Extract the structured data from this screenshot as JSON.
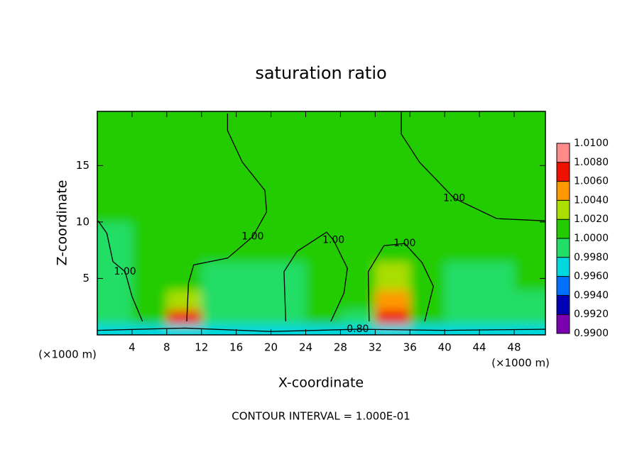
{
  "chart_data": {
    "type": "contour",
    "title": "saturation ratio",
    "x_label": "X-coordinate",
    "y_label": "Z-coordinate",
    "x_unit_left": "(×1000 m)",
    "x_unit_right": "(×1000 m)",
    "footnote": "CONTOUR INTERVAL = 1.000E-01",
    "xlim": [
      0,
      51.6
    ],
    "ylim": [
      0,
      19.8
    ],
    "xticks": [
      4,
      8,
      12,
      16,
      20,
      24,
      28,
      32,
      36,
      40,
      44,
      48
    ],
    "yticks": [
      5,
      10,
      15
    ],
    "field": {
      "x": [
        2,
        6,
        10,
        14,
        18,
        22,
        26,
        30,
        34,
        38,
        42,
        46,
        50
      ],
      "z": [
        0.5,
        1.5,
        3,
        5,
        8,
        12,
        17
      ],
      "values": [
        [
          0.997,
          0.997,
          0.997,
          0.997,
          0.997,
          0.997,
          0.997,
          0.997,
          0.997,
          0.997,
          0.997,
          0.997,
          0.997
        ],
        [
          0.999,
          1.001,
          1.006,
          0.9995,
          0.9985,
          0.9995,
          1.0005,
          0.9995,
          1.007,
          1.0005,
          0.9995,
          0.9995,
          0.9995
        ],
        [
          0.999,
          1.001,
          1.003,
          0.9995,
          0.9985,
          0.9995,
          1.001,
          1.0005,
          1.004,
          1.0005,
          0.9995,
          0.9995,
          0.9995
        ],
        [
          0.999,
          1.0005,
          1.001,
          0.9995,
          0.999,
          0.9995,
          1.001,
          1.0005,
          1.002,
          1.0005,
          0.9995,
          0.9995,
          1.0005
        ],
        [
          0.999,
          1.0005,
          1.0005,
          1.001,
          1.0005,
          1.0005,
          1.001,
          1.001,
          1.001,
          1.0005,
          1.001,
          1.001,
          1.001
        ],
        [
          1.001,
          1.001,
          1.001,
          1.001,
          1.001,
          1.001,
          1.001,
          1.001,
          1.001,
          1.001,
          1.001,
          1.001,
          1.001
        ],
        [
          1.001,
          1.001,
          1.001,
          1.001,
          1.001,
          1.001,
          1.001,
          1.001,
          1.001,
          1.001,
          1.001,
          1.001,
          1.001
        ]
      ]
    },
    "contours": [
      {
        "level": 1.0,
        "label": "1.00",
        "x": [
          15.0,
          15.0,
          16.7,
          19.3,
          19.5,
          17.9,
          15.0,
          11.1,
          10.5,
          10.3
        ],
        "y": [
          19.6,
          18.1,
          15.3,
          12.8,
          10.9,
          8.7,
          6.8,
          6.2,
          4.6,
          1.2
        ]
      },
      {
        "level": 1.0,
        "label": "1.00",
        "x": [
          0.1,
          1.1,
          1.8,
          3.2,
          4.0,
          5.2
        ],
        "y": [
          10.1,
          9.0,
          6.5,
          5.6,
          3.4,
          1.2
        ]
      },
      {
        "level": 1.0,
        "label": "1.00",
        "x": [
          21.7,
          21.5,
          23.0,
          26.4,
          27.2,
          28.8,
          28.4,
          26.9
        ],
        "y": [
          1.2,
          5.6,
          7.4,
          9.1,
          8.4,
          5.9,
          3.7,
          1.2
        ]
      },
      {
        "level": 1.0,
        "label": "1.00",
        "x": [
          31.3,
          31.2,
          33.0,
          35.4,
          37.4,
          38.7,
          37.7
        ],
        "y": [
          1.2,
          5.6,
          7.9,
          8.1,
          6.4,
          4.3,
          1.2
        ]
      },
      {
        "level": 1.0,
        "label": "1.00",
        "x": [
          35.0,
          35.0,
          37.1,
          41.1,
          46.0,
          51.6
        ],
        "y": [
          19.8,
          17.8,
          15.3,
          12.1,
          10.3,
          10.1
        ]
      },
      {
        "level": 0.8,
        "label": "0.80",
        "x": [
          0,
          10,
          20,
          30,
          40,
          51.6
        ],
        "y": [
          0.4,
          0.6,
          0.3,
          0.5,
          0.4,
          0.5
        ]
      }
    ],
    "colorbar": {
      "colors": [
        "#7a00b0",
        "#0000b4",
        "#0070ff",
        "#00d8e0",
        "#22dd66",
        "#22cc00",
        "#aadd00",
        "#ff9900",
        "#ee1100",
        "#ff8a8a"
      ],
      "ticks": [
        {
          "value": 0.99,
          "label": "0.9900"
        },
        {
          "value": 0.992,
          "label": "0.9920"
        },
        {
          "value": 0.994,
          "label": "0.9940"
        },
        {
          "value": 0.996,
          "label": "0.9960"
        },
        {
          "value": 0.998,
          "label": "0.9980"
        },
        {
          "value": 1.0,
          "label": "1.0000"
        },
        {
          "value": 1.002,
          "label": "1.0020"
        },
        {
          "value": 1.004,
          "label": "1.0040"
        },
        {
          "value": 1.006,
          "label": "1.0060"
        },
        {
          "value": 1.008,
          "label": "1.0080"
        },
        {
          "value": 1.01,
          "label": "1.0100"
        }
      ]
    }
  }
}
